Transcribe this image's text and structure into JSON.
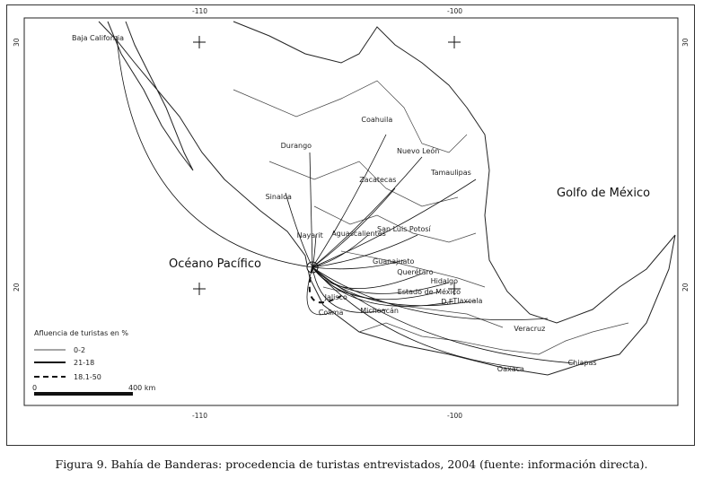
{
  "map": {
    "grid_labels": {
      "lon_west": "-110",
      "lon_east": "-100",
      "lat_north": "30",
      "lat_south": "20"
    },
    "water_labels": {
      "pacific": "Océano Pacífico",
      "gulf": "Golfo de México"
    },
    "origin": "Bahía de Banderas",
    "flows": [
      {
        "name": "Baja California",
        "class": "0-2"
      },
      {
        "name": "Sinaloa",
        "class": "0-2"
      },
      {
        "name": "Durango",
        "class": "0-2"
      },
      {
        "name": "Coahuila",
        "class": "0-2"
      },
      {
        "name": "Nuevo León",
        "class": "0-2"
      },
      {
        "name": "Tamaulipas",
        "class": "0-2"
      },
      {
        "name": "Zacatecas",
        "class": "0-2"
      },
      {
        "name": "Nayarit",
        "class": "0-2"
      },
      {
        "name": "Aguascalientes",
        "class": "0-2"
      },
      {
        "name": "San Luis Potosí",
        "class": "0-2"
      },
      {
        "name": "Guanajuato",
        "class": "0-2"
      },
      {
        "name": "Querétaro",
        "class": "0-2"
      },
      {
        "name": "Hidalgo",
        "class": "0-2"
      },
      {
        "name": "Estado de México",
        "class": "0-2"
      },
      {
        "name": "D.F.",
        "class": "0-2"
      },
      {
        "name": "Tlaxcala",
        "class": "0-2"
      },
      {
        "name": "Jalisco",
        "class": "18.1-50"
      },
      {
        "name": "Colima",
        "class": "0-2"
      },
      {
        "name": "Michoacán",
        "class": "0-2"
      },
      {
        "name": "Veracruz",
        "class": "0-2"
      },
      {
        "name": "Oaxaca",
        "class": "0-2"
      },
      {
        "name": "Chiapas",
        "class": "0-2"
      }
    ]
  },
  "legend": {
    "title": "Afluencia de turistas en %",
    "items": [
      {
        "label": "0-2",
        "style": "thin"
      },
      {
        "label": "21-18",
        "style": "thick"
      },
      {
        "label": "18.1-50",
        "style": "dashed"
      }
    ],
    "scale_start": "0",
    "scale_end": "400 km"
  },
  "caption": "Figura 9. Bahía de Banderas: procedencia de turistas entrevistados, 2004 (fuente: información directa)."
}
